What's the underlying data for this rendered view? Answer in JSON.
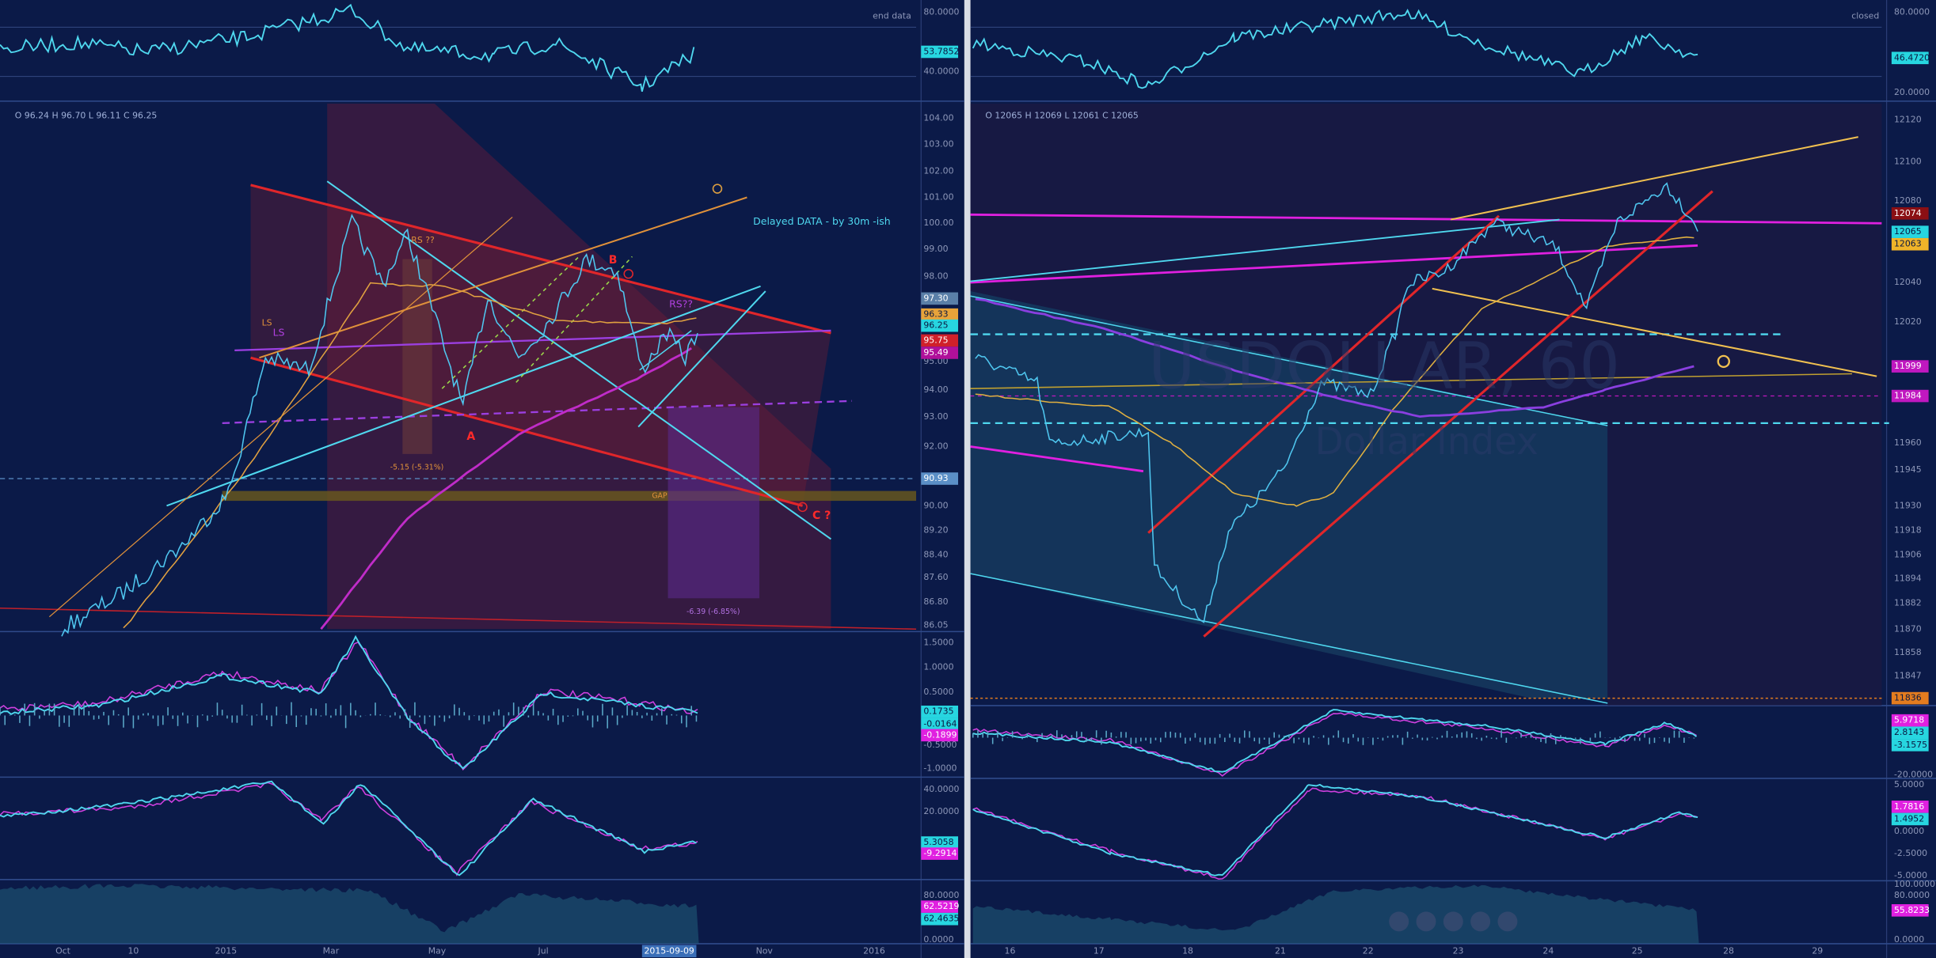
{
  "left_chart": {
    "rsi_pane": {
      "status": "end data",
      "axis": [
        "80.0000",
        "40.0000"
      ],
      "last_value": "53.7852"
    },
    "price_pane": {
      "ohlc": "O 96.24 H 96.70 L 96.11 C 96.25",
      "axis": [
        "104.00",
        "103.00",
        "102.00",
        "101.00",
        "100.00",
        "99.00",
        "98.00",
        "95.00",
        "94.00",
        "93.00",
        "92.00",
        "90.00",
        "89.20",
        "88.40",
        "87.60",
        "86.80",
        "86.05"
      ],
      "price_labels": [
        "97.30",
        "96.33",
        "96.25",
        "95.75",
        "95.49",
        "90.93"
      ],
      "annotations": [
        "Delayed DATA - by 30m -ish",
        "RS ??",
        "LS",
        "LS",
        "B",
        "A",
        "RS??",
        "C ?",
        "GAP",
        "-5.15 (-5.31%)",
        "-6.39 (-6.85%)"
      ]
    },
    "macd_pane": {
      "axis": [
        "1.5000",
        "1.0000",
        "0.5000",
        "-0.5000",
        "-1.0000"
      ],
      "last_values": [
        "0.1735",
        "-0.0164",
        "-0.1899"
      ]
    },
    "stoch_pane": {
      "axis": [
        "40.0000",
        "20.0000"
      ],
      "last_values": [
        "5.3058",
        "-9.2914"
      ]
    },
    "volume_pane": {
      "axis": [
        "80.0000",
        "0.0000"
      ],
      "last_values": [
        "62.5219",
        "62.4635"
      ]
    },
    "time_axis": [
      "Oct",
      "10",
      "2015",
      "Mar",
      "May",
      "Jul",
      "2015-09-09",
      "Nov",
      "2016"
    ]
  },
  "right_chart": {
    "rsi_pane": {
      "status": "closed",
      "axis": [
        "80.0000",
        "20.0000"
      ],
      "last_value": "46.4720"
    },
    "price_pane": {
      "ohlc": "O 12065 H 12069 L 12061 C 12065",
      "watermark": [
        "USDOLLAR, 60",
        "Dollar Index"
      ],
      "axis": [
        "12120",
        "12100",
        "12080",
        "12040",
        "12020",
        "11960",
        "11945",
        "11930",
        "11918",
        "11906",
        "11894",
        "11882",
        "11870",
        "11858",
        "11847"
      ],
      "price_labels": [
        "12074",
        "12065",
        "12063",
        "11999",
        "11984",
        "11836"
      ]
    },
    "macd_pane": {
      "axis": [
        "-20.0000"
      ],
      "last_values": [
        "5.9718",
        "2.8143",
        "-3.1575"
      ]
    },
    "stoch_pane": {
      "axis": [
        "5.0000",
        "0.0000",
        "-2.5000",
        "-5.0000"
      ],
      "last_values": [
        "1.7816",
        "1.4952"
      ]
    },
    "volume_pane": {
      "axis": [
        "100.0000",
        "80.0000",
        "0.0000"
      ],
      "last_values": [
        "55.8233"
      ]
    },
    "time_axis": [
      "16",
      "17",
      "18",
      "21",
      "22",
      "23",
      "24",
      "25",
      "28",
      "29"
    ]
  }
}
